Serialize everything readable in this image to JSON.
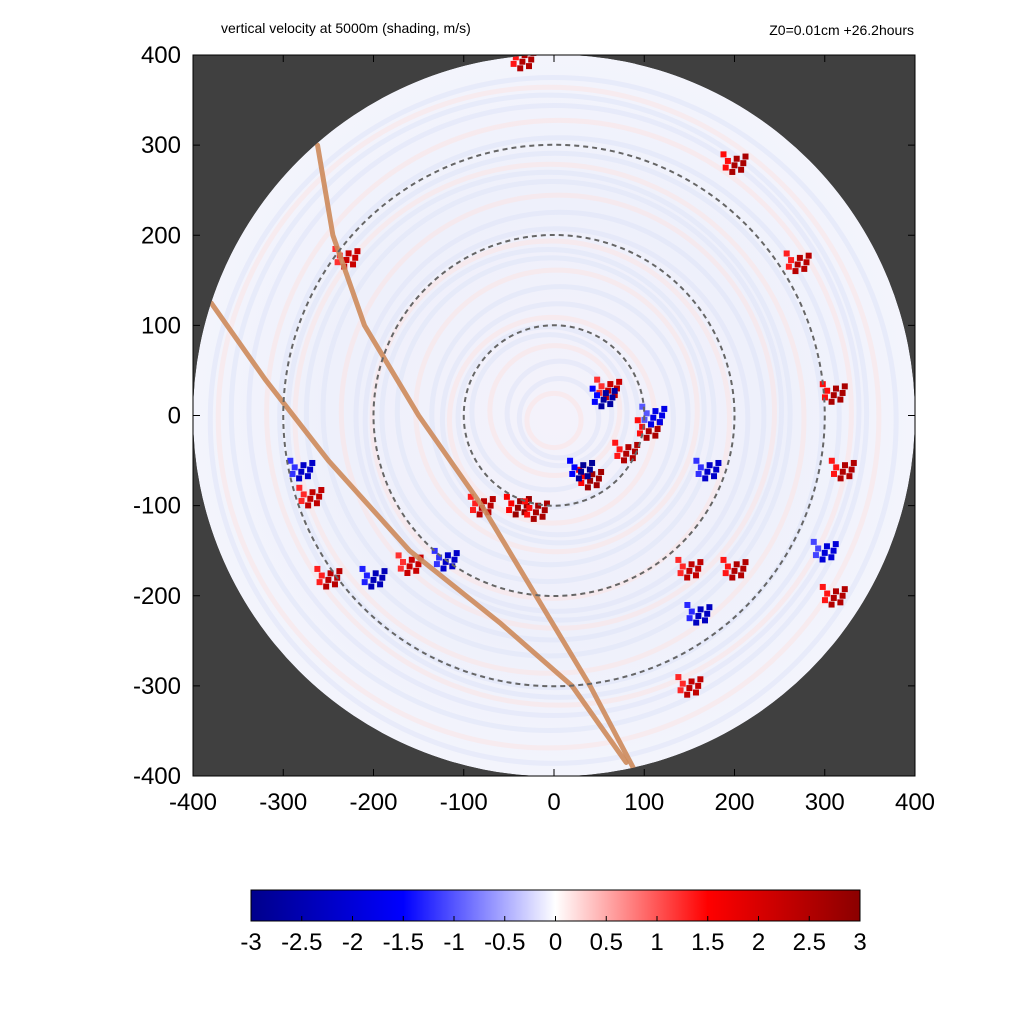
{
  "title": "vertical velocity at 5000m (shading, m/s)",
  "subtitle": "Z0=0.01cm  +26.2hours",
  "chart_data": {
    "type": "heatmap",
    "title": "vertical velocity at 5000m (shading, m/s)",
    "subtitle": "Z0=0.01cm  +26.2hours",
    "xlim": [
      -400,
      400
    ],
    "ylim": [
      -400,
      400
    ],
    "x_ticks": [
      -400,
      -300,
      -200,
      -100,
      0,
      100,
      200,
      300,
      400
    ],
    "y_ticks": [
      -400,
      -300,
      -200,
      -100,
      0,
      100,
      200,
      300,
      400
    ],
    "x_tick_labels": [
      "-400",
      "-300",
      "-200",
      "-100",
      "0",
      "100",
      "200",
      "300",
      "400"
    ],
    "y_tick_labels": [
      "400",
      "300",
      "200",
      "100",
      "0",
      "-100",
      "-200",
      "-300",
      "-400"
    ],
    "domain_radius": 400,
    "range_rings": [
      100,
      200,
      300
    ],
    "colorbar": {
      "min": -3,
      "max": 3,
      "ticks": [
        -3,
        -2.5,
        -2,
        -1.5,
        -1,
        -0.5,
        0,
        0.5,
        1,
        1.5,
        2,
        2.5,
        3
      ],
      "tick_labels": [
        "-3",
        "-2.5",
        "-2",
        "-1.5",
        "-1",
        "-0.5",
        "0",
        "0.5",
        "1",
        "1.5",
        "2",
        "2.5",
        "3"
      ],
      "colors": [
        "#00008b",
        "#0000ff",
        "#ffffff",
        "#ff0000",
        "#8b0000"
      ]
    },
    "tracks": [
      {
        "points": [
          [
            -262,
            300
          ],
          [
            -245,
            200
          ],
          [
            -210,
            100
          ],
          [
            -150,
            0
          ],
          [
            -80,
            -100
          ],
          [
            -20,
            -200
          ],
          [
            40,
            -300
          ],
          [
            90,
            -395
          ]
        ]
      },
      {
        "points": [
          [
            -380,
            125
          ],
          [
            -320,
            40
          ],
          [
            -250,
            -50
          ],
          [
            -160,
            -150
          ],
          [
            -60,
            -230
          ],
          [
            20,
            -300
          ],
          [
            80,
            -385
          ]
        ]
      }
    ],
    "updraft_clusters": [
      {
        "x": -40,
        "y": -100,
        "value": 2.8
      },
      {
        "x": 40,
        "y": -70,
        "value": 2.7
      },
      {
        "x": 80,
        "y": -40,
        "value": 2.5
      },
      {
        "x": 105,
        "y": -15,
        "value": 2.6
      },
      {
        "x": 60,
        "y": 30,
        "value": 2.2
      },
      {
        "x": -80,
        "y": -100,
        "value": 2.4
      },
      {
        "x": -20,
        "y": -105,
        "value": 2.6
      },
      {
        "x": -270,
        "y": -90,
        "value": 2.3
      },
      {
        "x": -250,
        "y": -180,
        "value": 2.4
      },
      {
        "x": -160,
        "y": -165,
        "value": 2.2
      },
      {
        "x": 200,
        "y": -170,
        "value": 2.5
      },
      {
        "x": 150,
        "y": -170,
        "value": 2.3
      },
      {
        "x": 310,
        "y": 25,
        "value": 2.6
      },
      {
        "x": 320,
        "y": -60,
        "value": 2.5
      },
      {
        "x": 270,
        "y": 170,
        "value": 2.4
      },
      {
        "x": 200,
        "y": 280,
        "value": 2.6
      },
      {
        "x": -35,
        "y": 395,
        "value": 2.5
      },
      {
        "x": 310,
        "y": -200,
        "value": 2.5
      },
      {
        "x": 150,
        "y": -300,
        "value": 2.3
      },
      {
        "x": -230,
        "y": 175,
        "value": 2.2
      }
    ],
    "downdraft_clusters": [
      {
        "x": 55,
        "y": 20,
        "value": -2.7
      },
      {
        "x": 30,
        "y": -60,
        "value": -2.8
      },
      {
        "x": -280,
        "y": -60,
        "value": -2.2
      },
      {
        "x": -200,
        "y": -180,
        "value": -2.4
      },
      {
        "x": 170,
        "y": -60,
        "value": -2.2
      },
      {
        "x": 160,
        "y": -220,
        "value": -2.3
      },
      {
        "x": 300,
        "y": -150,
        "value": -2.0
      },
      {
        "x": 110,
        "y": 0,
        "value": -1.8
      },
      {
        "x": -120,
        "y": -160,
        "value": -2.2
      }
    ]
  }
}
